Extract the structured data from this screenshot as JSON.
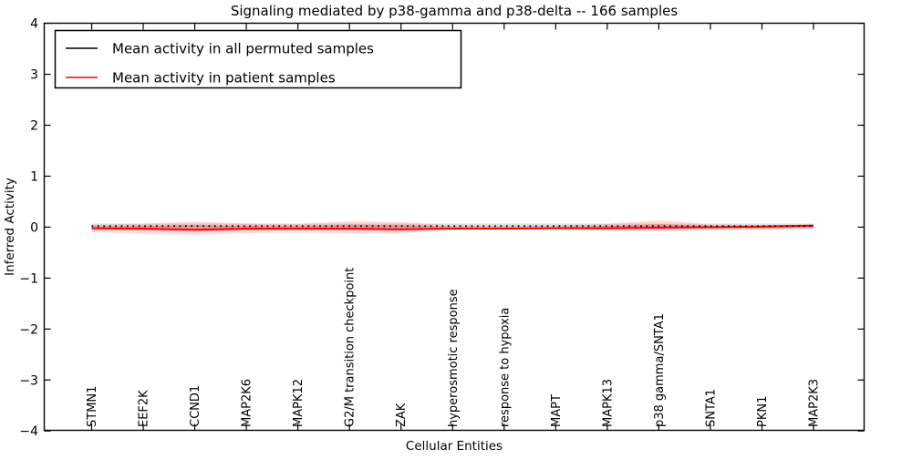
{
  "title": "Signaling mediated by p38-gamma and p38-delta -- 166 samples",
  "axes": {
    "ylabel": "Inferred Activity",
    "xlabel": "Cellular Entities"
  },
  "legend": {
    "items": [
      {
        "label": "Mean activity in all permuted samples",
        "color": "#000000"
      },
      {
        "label": "Mean activity in patient samples",
        "color": "#ff0000"
      }
    ]
  },
  "chart_data": {
    "type": "line",
    "title": "Signaling mediated by p38-gamma and p38-delta -- 166 samples",
    "xlabel": "Cellular Entities",
    "ylabel": "Inferred Activity",
    "ylim": [
      -4,
      4
    ],
    "yticks": [
      4,
      3,
      2,
      1,
      0,
      -1,
      -2,
      -3,
      -4
    ],
    "grid": false,
    "legend_position": "upper left",
    "categories": [
      "STMN1",
      "EEF2K",
      "CCND1",
      "MAP2K6",
      "MAPK12",
      "G2/M transition checkpoint",
      "ZAK",
      "hyperosmotic response",
      "response to hypoxia",
      "MAPT",
      "MAPK13",
      "p38 gamma/SNTA1",
      "SNTA1",
      "PKN1",
      "MAP2K3"
    ],
    "series": [
      {
        "name": "Mean activity in all permuted samples",
        "color": "#000000",
        "style": "dashed",
        "values": [
          0.02,
          0.02,
          0.02,
          0.02,
          0.02,
          0.02,
          0.02,
          0.02,
          0.02,
          0.02,
          0.02,
          0.02,
          0.02,
          0.02,
          0.02
        ]
      },
      {
        "name": "Mean activity in patient samples",
        "color": "#f00000",
        "style": "solid",
        "values": [
          -0.02,
          -0.03,
          -0.05,
          -0.03,
          -0.03,
          -0.03,
          -0.04,
          -0.03,
          -0.03,
          -0.02,
          -0.02,
          -0.01,
          0.0,
          0.01,
          0.03
        ]
      }
    ],
    "bands": [
      {
        "name": "patient-envelope-outer",
        "color": "#ff2a2a",
        "opacity": 0.16,
        "upper": [
          0.04,
          0.07,
          0.11,
          0.07,
          0.06,
          0.12,
          0.1,
          0.03,
          0.02,
          0.03,
          0.06,
          0.14,
          0.05,
          0.04,
          0.05
        ],
        "lower": [
          -0.1,
          -0.13,
          -0.16,
          -0.12,
          -0.11,
          -0.12,
          -0.13,
          -0.05,
          -0.04,
          -0.05,
          -0.08,
          -0.09,
          -0.06,
          -0.05,
          -0.03
        ]
      },
      {
        "name": "patient-envelope-inner",
        "color": "#ff2a2a",
        "opacity": 0.3,
        "upper": [
          0.01,
          0.02,
          0.04,
          0.02,
          0.02,
          0.05,
          0.04,
          0.0,
          0.0,
          0.0,
          0.02,
          0.06,
          0.02,
          0.02,
          0.04
        ],
        "lower": [
          -0.06,
          -0.07,
          -0.09,
          -0.07,
          -0.06,
          -0.07,
          -0.08,
          -0.04,
          -0.03,
          -0.04,
          -0.05,
          -0.05,
          -0.04,
          -0.03,
          -0.02
        ]
      },
      {
        "name": "permuted-envelope",
        "color": "#aaaaaa",
        "opacity": 0.4,
        "upper": [
          0.07,
          0.07,
          0.07,
          0.07,
          0.07,
          0.07,
          0.07,
          0.07,
          0.07,
          0.07,
          0.07,
          0.07,
          0.07,
          0.07,
          0.07
        ],
        "lower": [
          -0.02,
          -0.02,
          -0.02,
          -0.02,
          -0.02,
          -0.02,
          -0.02,
          -0.02,
          -0.02,
          -0.02,
          -0.02,
          -0.02,
          -0.02,
          -0.02,
          -0.02
        ]
      }
    ]
  }
}
